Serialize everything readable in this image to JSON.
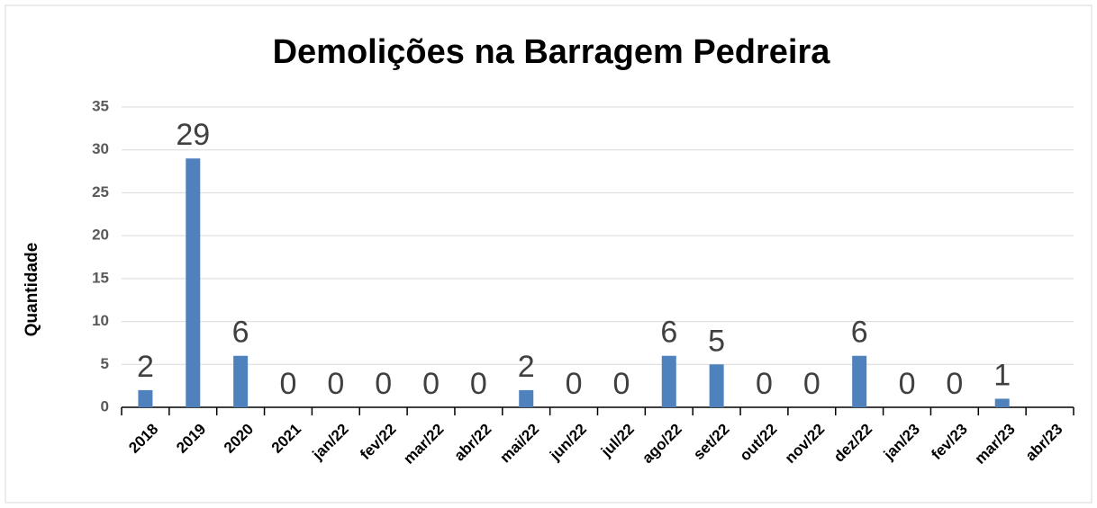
{
  "chart_data": {
    "type": "bar",
    "title": "Demolições na Barragem Pedreira",
    "y_label": "Quantidade",
    "categories": [
      "2018",
      "2019",
      "2020",
      "2021",
      "jan/22",
      "fev/22",
      "mar/22",
      "abr/22",
      "mai/22",
      "jun/22",
      "jul/22",
      "ago/22",
      "set/22",
      "out/22",
      "nov/22",
      "dez/22",
      "jan/23",
      "fev/23",
      "mar/23",
      "abr/23"
    ],
    "values": [
      2,
      29,
      6,
      0,
      0,
      0,
      0,
      0,
      2,
      0,
      0,
      6,
      5,
      0,
      0,
      6,
      0,
      0,
      1,
      null
    ],
    "color": "#4f81bd",
    "ylim": [
      0,
      35
    ],
    "yticks": [
      0,
      5,
      10,
      15,
      20,
      25,
      30,
      35
    ],
    "grid": true
  }
}
